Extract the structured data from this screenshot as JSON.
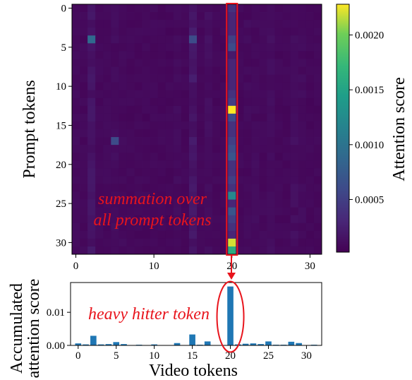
{
  "chart_data": [
    {
      "type": "heatmap",
      "ylabel": "Prompt tokens",
      "colorbar_label": "Attention score",
      "colormap": "viridis",
      "rows": 32,
      "cols": 32,
      "x_ticks": [
        "0",
        "10",
        "20",
        "30"
      ],
      "y_ticks": [
        "0",
        "5",
        "10",
        "15",
        "20",
        "25",
        "30"
      ],
      "colorbar_ticks": [
        "0.0005",
        "0.0010",
        "0.0015",
        "0.0020"
      ],
      "colorbar_tick_values": [
        0.0005,
        0.001,
        0.0015,
        0.002
      ],
      "vmin": 2e-05,
      "vmax": 0.00228,
      "annotation_lines": [
        "summation over",
        "all prompt tokens"
      ],
      "highlight_column": 20,
      "highlight_color": "#e8141c",
      "highlight_column_values": [
        0.0004,
        0.0003,
        0.0003,
        0.0003,
        0.0005,
        0.0006,
        0.0002,
        0.0003,
        0.0003,
        0.0003,
        0.0003,
        0.0004,
        0.0005,
        0.00228,
        0.0006,
        0.0004,
        0.0004,
        0.0005,
        0.0006,
        0.0007,
        0.0004,
        0.0004,
        0.0005,
        0.0004,
        0.0012,
        0.0003,
        0.0007,
        0.0005,
        0.0004,
        0.0003,
        0.0022,
        0.0016
      ],
      "notable_cells": [
        {
          "row": 4,
          "col": 2,
          "value": 0.0009
        },
        {
          "row": 4,
          "col": 15,
          "value": 0.0006
        },
        {
          "row": 17,
          "col": 5,
          "value": 0.0006
        }
      ]
    },
    {
      "type": "bar",
      "xlabel": "Video tokens",
      "ylabel": [
        "Accumulated",
        "attention score"
      ],
      "annotation": "heavy hitter token",
      "categories": [
        0,
        1,
        2,
        3,
        4,
        5,
        6,
        7,
        8,
        9,
        10,
        11,
        12,
        13,
        14,
        15,
        16,
        17,
        18,
        19,
        20,
        21,
        22,
        23,
        24,
        25,
        26,
        27,
        28,
        29,
        30,
        31
      ],
      "values": [
        0.0006,
        0.0003,
        0.0029,
        0.0003,
        0.0004,
        0.001,
        0.0004,
        0.0001,
        0.0002,
        0.0001,
        0.0003,
        0.0001,
        0.0001,
        0.0007,
        0.0001,
        0.0033,
        0.0002,
        0.0012,
        0.0001,
        0.0001,
        0.0178,
        0.0003,
        0.0005,
        0.0006,
        0.0004,
        0.0012,
        0.0002,
        0.0002,
        0.0011,
        0.0007,
        0.0001,
        0.0002
      ],
      "ylim": [
        0,
        0.019
      ],
      "x_ticks": [
        "0",
        "5",
        "10",
        "15",
        "20",
        "25",
        "30"
      ],
      "y_ticks": [
        "0.00",
        "0.01"
      ],
      "bar_color": "#1f77b4",
      "highlight_index": 20,
      "highlight_color": "#e8141c"
    }
  ]
}
